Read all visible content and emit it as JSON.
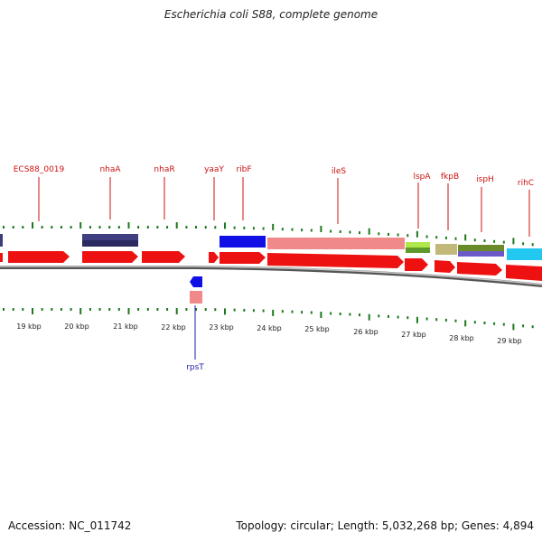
{
  "title": "Escherichia coli S88, complete genome",
  "footer": {
    "accession": "Accession: NC_011742",
    "summary": "Topology: circular; Length: 5,032,268 bp; Genes: 4,894"
  },
  "colors": {
    "cds": "#ee1111",
    "label_top": "#cc1111",
    "label_bottom": "#1a1aaa",
    "tick": "#1c7a1c",
    "backbone": "#8c8c8c"
  },
  "kbp_labels": [
    "19 kbp",
    "20 kbp",
    "21 kbp",
    "22 kbp",
    "23 kbp",
    "24 kbp",
    "25 kbp",
    "26 kbp",
    "27 kbp",
    "28 kbp",
    "29 kbp"
  ],
  "gene_labels_top": [
    "ECS88_0019",
    "nhaA",
    "nhaR",
    "yaaY",
    "ribF",
    "ileS",
    "lspA",
    "fkpB",
    "ispH",
    "rihC"
  ],
  "gene_labels_bottom": [
    "rpsT"
  ]
}
